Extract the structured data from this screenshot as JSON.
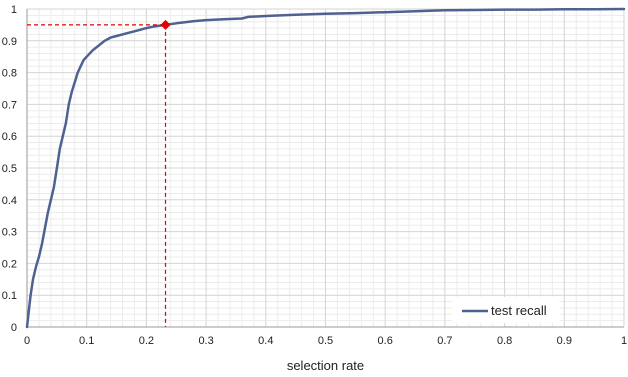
{
  "chart_data": {
    "type": "line",
    "xlabel": "selection rate",
    "ylabel": "",
    "xlim": [
      0,
      1
    ],
    "ylim": [
      0,
      1
    ],
    "grid": true,
    "x_ticks": [
      "0",
      "0.1",
      "0.2",
      "0.3",
      "0.4",
      "0.5",
      "0.6",
      "0.7",
      "0.8",
      "0.9",
      "1"
    ],
    "y_ticks": [
      "0",
      "0.1",
      "0.2",
      "0.3",
      "0.4",
      "0.5",
      "0.6",
      "0.7",
      "0.8",
      "0.9",
      "1"
    ],
    "legend": {
      "position": "bottom-right"
    },
    "series": [
      {
        "name": "test recall",
        "color": "#4f6191",
        "x": [
          0,
          0.003,
          0.006,
          0.01,
          0.015,
          0.02,
          0.025,
          0.03,
          0.035,
          0.04,
          0.045,
          0.05,
          0.055,
          0.06,
          0.065,
          0.07,
          0.075,
          0.08,
          0.085,
          0.09,
          0.095,
          0.1,
          0.11,
          0.12,
          0.13,
          0.14,
          0.15,
          0.16,
          0.17,
          0.18,
          0.19,
          0.2,
          0.21,
          0.22,
          0.232,
          0.25,
          0.28,
          0.3,
          0.33,
          0.36,
          0.37,
          0.4,
          0.45,
          0.5,
          0.55,
          0.6,
          0.65,
          0.68,
          0.7,
          0.75,
          0.8,
          0.85,
          0.9,
          0.95,
          1.0
        ],
        "y": [
          0,
          0.05,
          0.1,
          0.15,
          0.19,
          0.22,
          0.26,
          0.31,
          0.36,
          0.4,
          0.44,
          0.5,
          0.56,
          0.6,
          0.64,
          0.7,
          0.74,
          0.77,
          0.8,
          0.82,
          0.84,
          0.85,
          0.87,
          0.885,
          0.9,
          0.91,
          0.915,
          0.92,
          0.925,
          0.93,
          0.935,
          0.94,
          0.944,
          0.947,
          0.95,
          0.955,
          0.962,
          0.965,
          0.968,
          0.97,
          0.975,
          0.978,
          0.982,
          0.985,
          0.987,
          0.99,
          0.993,
          0.995,
          0.996,
          0.997,
          0.998,
          0.998,
          0.999,
          0.999,
          1.0
        ]
      }
    ],
    "highlight": {
      "x": 0.232,
      "y": 0.95,
      "color": "#e00000"
    }
  }
}
